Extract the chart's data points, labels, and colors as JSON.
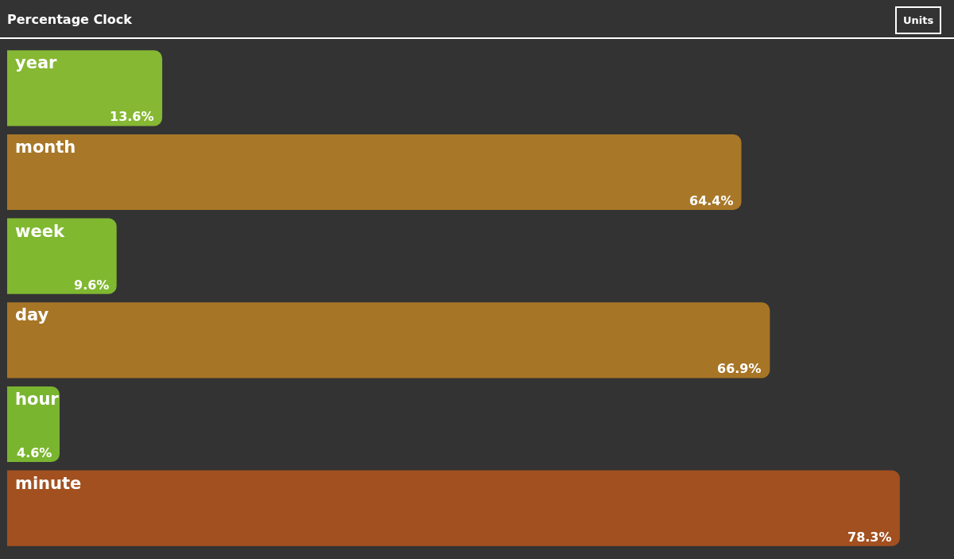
{
  "chart_data": {
    "type": "bar",
    "title": "Percentage Clock",
    "orientation": "horizontal",
    "categories": [
      "year",
      "month",
      "week",
      "day",
      "hour",
      "minute"
    ],
    "values": [
      13.6,
      64.4,
      9.6,
      66.9,
      4.6,
      78.3
    ],
    "colors": [
      "#86b833",
      "#a87828",
      "#80b830",
      "#a77526",
      "#7ab530",
      "#a2501f"
    ],
    "value_labels": [
      "13.6%",
      "64.4%",
      "9.6%",
      "66.9%",
      "4.6%",
      "78.3%"
    ],
    "tick_labels": false,
    "grid": false,
    "legend": false,
    "annotations": [
      "Units"
    ]
  }
}
